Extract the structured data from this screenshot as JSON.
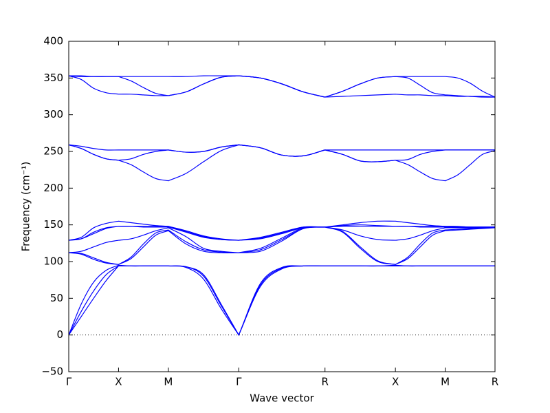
{
  "chart_data": {
    "type": "line",
    "x_label": "Wave vector",
    "y_label": "Frequency (cm⁻¹)",
    "color": "#0000ff",
    "zero_line": true,
    "xlim": [
      0,
      4.28
    ],
    "ylim": [
      -50,
      400
    ],
    "xticks": [
      {
        "value": 0,
        "label": "Γ"
      },
      {
        "value": 0.5,
        "label": "X"
      },
      {
        "value": 1.0,
        "label": "M"
      },
      {
        "value": 1.707,
        "label": "Γ"
      },
      {
        "value": 2.573,
        "label": "R"
      },
      {
        "value": 3.28,
        "label": "X"
      },
      {
        "value": 3.78,
        "label": "M"
      },
      {
        "value": 4.28,
        "label": "R"
      }
    ],
    "yticks": [
      {
        "value": -50,
        "label": "−50"
      },
      0,
      50,
      100,
      150,
      200,
      250,
      300,
      350,
      400
    ],
    "x": [
      0,
      0.125,
      0.25,
      0.375,
      0.5,
      0.625,
      0.75,
      0.875,
      1.0,
      1.177,
      1.354,
      1.53,
      1.707,
      1.924,
      2.14,
      2.357,
      2.573,
      2.75,
      2.927,
      3.103,
      3.28,
      3.405,
      3.53,
      3.655,
      3.78,
      3.905,
      4.03,
      4.155,
      4.28
    ],
    "series": [
      {
        "values": [
          0,
          25,
          50,
          74,
          94,
          94,
          94,
          94,
          94,
          92,
          76,
          36,
          0,
          66,
          90,
          94,
          94,
          94,
          94,
          94,
          94,
          94,
          94,
          94,
          94,
          94,
          94,
          94,
          94
        ]
      },
      {
        "values": [
          0,
          32,
          60,
          82,
          94,
          94,
          94,
          94,
          94,
          93,
          80,
          40,
          0,
          68,
          91,
          94,
          94,
          94,
          94,
          94,
          94,
          94,
          94,
          94,
          94,
          94,
          94,
          94,
          94
        ]
      },
      {
        "values": [
          0,
          42,
          72,
          88,
          95,
          94,
          94,
          94,
          94,
          93,
          82,
          42,
          0,
          70,
          92,
          94,
          94,
          94,
          94,
          94,
          95,
          94,
          94,
          94,
          94,
          94,
          94,
          94,
          94
        ]
      },
      {
        "values": [
          112,
          110,
          103,
          98,
          96,
          104,
          120,
          136,
          142,
          124,
          114,
          112,
          112,
          114,
          128,
          145,
          147,
          140,
          118,
          100,
          96,
          104,
          120,
          136,
          142,
          143,
          144,
          145,
          146
        ]
      },
      {
        "values": [
          112,
          111,
          105,
          99,
          96,
          106,
          124,
          139,
          143,
          127,
          116,
          113,
          112,
          116,
          130,
          145,
          147,
          141,
          120,
          101,
          96,
          106,
          124,
          139,
          143,
          144,
          145,
          146,
          147
        ]
      },
      {
        "values": [
          112,
          114,
          120,
          126,
          129,
          131,
          136,
          142,
          146,
          134,
          118,
          114,
          112,
          118,
          132,
          146,
          147,
          143,
          135,
          130,
          129,
          131,
          136,
          142,
          146,
          146,
          146,
          146,
          147
        ]
      },
      {
        "values": [
          129,
          131,
          138,
          145,
          148,
          148,
          147,
          147,
          147,
          140,
          133,
          130,
          129,
          131,
          138,
          146,
          147,
          148,
          148,
          148,
          148,
          148,
          147,
          147,
          147,
          147,
          147,
          147,
          147
        ]
      },
      {
        "values": [
          129,
          131,
          140,
          146,
          148,
          148,
          148,
          148,
          148,
          141,
          134,
          130,
          129,
          132,
          139,
          147,
          147,
          149,
          150,
          149,
          148,
          148,
          148,
          148,
          148,
          147,
          147,
          147,
          147
        ]
      },
      {
        "values": [
          129,
          133,
          146,
          152,
          155,
          153,
          151,
          149,
          148,
          142,
          135,
          131,
          129,
          133,
          140,
          147,
          147,
          150,
          153,
          155,
          155,
          153,
          151,
          149,
          148,
          148,
          147,
          147,
          147
        ]
      },
      {
        "values": [
          259,
          254,
          246,
          240,
          238,
          232,
          222,
          213,
          210,
          220,
          236,
          251,
          259,
          255,
          245,
          244,
          252,
          246,
          237,
          236,
          238,
          232,
          222,
          213,
          210,
          218,
          232,
          246,
          251
        ]
      },
      {
        "values": [
          259,
          254,
          246,
          240,
          238,
          240,
          246,
          250,
          252,
          249,
          250,
          256,
          259,
          255,
          245,
          244,
          252,
          246,
          237,
          236,
          238,
          239,
          246,
          250,
          252,
          252,
          252,
          252,
          252
        ]
      },
      {
        "values": [
          259,
          257,
          254,
          252,
          252,
          252,
          252,
          252,
          252,
          249,
          250,
          256,
          259,
          255,
          245,
          244,
          252,
          252,
          252,
          252,
          252,
          252,
          252,
          252,
          252,
          252,
          252,
          252,
          252
        ]
      },
      {
        "values": [
          353,
          348,
          336,
          330,
          328,
          328,
          327,
          326,
          326,
          331,
          342,
          351,
          353,
          350,
          342,
          331,
          324,
          325,
          326,
          327,
          328,
          327,
          327,
          326,
          326,
          325,
          325,
          324,
          324
        ]
      },
      {
        "values": [
          353,
          352,
          352,
          352,
          352,
          346,
          337,
          329,
          326,
          331,
          342,
          351,
          353,
          350,
          342,
          331,
          324,
          332,
          342,
          350,
          352,
          350,
          340,
          330,
          327,
          326,
          325,
          325,
          324
        ]
      },
      {
        "values": [
          353,
          353,
          352,
          352,
          352,
          352,
          352,
          352,
          352,
          352,
          353,
          353,
          353,
          350,
          342,
          331,
          324,
          332,
          342,
          350,
          352,
          352,
          352,
          352,
          352,
          350,
          343,
          332,
          324
        ]
      }
    ]
  }
}
